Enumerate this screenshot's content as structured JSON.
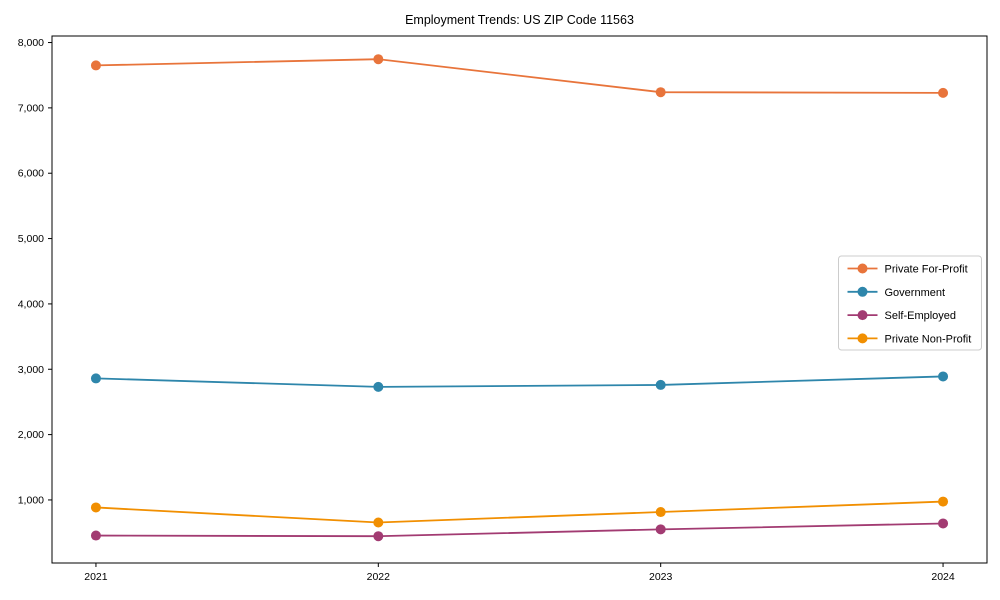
{
  "chart_data": {
    "type": "line",
    "title": "Employment Trends: US ZIP Code 11563",
    "x": [
      2021,
      2022,
      2023,
      2024
    ],
    "xtick_labels": [
      "2021",
      "2022",
      "2023",
      "2024"
    ],
    "yticks": [
      1000,
      2000,
      3000,
      4000,
      5000,
      6000,
      7000,
      8000
    ],
    "ytick_labels": [
      "1,000",
      "2,000",
      "3,000",
      "4,000",
      "5,000",
      "6,000",
      "7,000",
      "8,000"
    ],
    "ylim": [
      35,
      8100
    ],
    "xlabel": "",
    "ylabel": "",
    "grid": false,
    "legend_position": "center-right",
    "series": [
      {
        "name": "Private For-Profit",
        "color": "#E8743B",
        "values": [
          7650,
          7745,
          7240,
          7230
        ]
      },
      {
        "name": "Government",
        "color": "#2E86AB",
        "values": [
          2860,
          2730,
          2760,
          2890
        ]
      },
      {
        "name": "Self-Employed",
        "color": "#A23B72",
        "values": [
          455,
          445,
          550,
          640
        ]
      },
      {
        "name": "Private Non-Profit",
        "color": "#F18F01",
        "values": [
          885,
          655,
          815,
          975
        ]
      }
    ],
    "colors": {
      "axis": "#000000",
      "background": "#ffffff",
      "legend_border": "#cccccc"
    }
  }
}
